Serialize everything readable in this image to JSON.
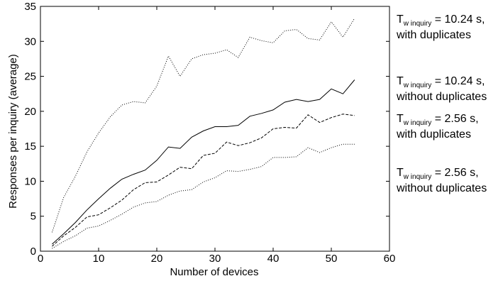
{
  "chart_data": {
    "type": "line",
    "title": "",
    "xlabel": "Number of devices",
    "ylabel": "Responses per inquiry (average)",
    "xlim": [
      0,
      60
    ],
    "ylim": [
      0,
      35
    ],
    "xticks": [
      0,
      10,
      20,
      30,
      40,
      50,
      60
    ],
    "yticks": [
      0,
      5,
      10,
      15,
      20,
      25,
      30,
      35
    ],
    "grid": false,
    "legend_placement": "right (outside plot)",
    "x": [
      2,
      4,
      6,
      8,
      10,
      12,
      14,
      16,
      18,
      20,
      22,
      24,
      26,
      28,
      30,
      32,
      34,
      36,
      38,
      40,
      42,
      44,
      46,
      48,
      50,
      52,
      54
    ],
    "series": [
      {
        "label_main": "T",
        "label_sub": "w inquiry",
        "label_rest": " = 10.24 s,",
        "label_line2": "with duplicates",
        "style": "dotted",
        "values": [
          2.7,
          7.7,
          10.7,
          14.2,
          16.9,
          19.2,
          20.9,
          21.4,
          21.2,
          23.6,
          27.9,
          25.0,
          27.5,
          28.1,
          28.3,
          28.8,
          27.7,
          30.6,
          30.1,
          29.8,
          31.5,
          31.7,
          30.4,
          30.2,
          32.8,
          30.6,
          33.3
        ]
      },
      {
        "label_main": "T",
        "label_sub": "w inquiry",
        "label_rest": " = 10.24 s,",
        "label_line2": "without duplicates",
        "style": "solid",
        "values": [
          1.0,
          2.5,
          4.1,
          5.9,
          7.5,
          9.0,
          10.3,
          11.0,
          11.6,
          13.0,
          14.9,
          14.7,
          16.3,
          17.2,
          17.8,
          17.8,
          18.0,
          19.3,
          19.7,
          20.2,
          21.3,
          21.7,
          21.4,
          21.7,
          23.2,
          22.5,
          24.5
        ]
      },
      {
        "label_main": "T",
        "label_sub": "w inquiry",
        "label_rest": " = 2.56 s,",
        "label_line2": "with duplicates",
        "style": "dashed",
        "values": [
          0.7,
          2.2,
          3.4,
          4.9,
          5.2,
          6.2,
          7.3,
          8.8,
          9.8,
          9.9,
          10.9,
          12.0,
          11.8,
          13.7,
          14.0,
          15.6,
          15.1,
          15.5,
          16.2,
          17.5,
          17.7,
          17.6,
          19.5,
          18.4,
          19.1,
          19.6,
          19.4
        ]
      },
      {
        "label_main": "T",
        "label_sub": "w inquiry",
        "label_rest": " = 2.56 s,",
        "label_line2": "without duplicates",
        "style": "dotted",
        "values": [
          0.4,
          1.4,
          2.2,
          3.3,
          3.6,
          4.4,
          5.3,
          6.3,
          6.9,
          7.1,
          8.0,
          8.6,
          8.8,
          9.9,
          10.5,
          11.5,
          11.4,
          11.7,
          12.1,
          13.4,
          13.4,
          13.5,
          14.8,
          14.1,
          14.8,
          15.3,
          15.3
        ]
      }
    ]
  }
}
